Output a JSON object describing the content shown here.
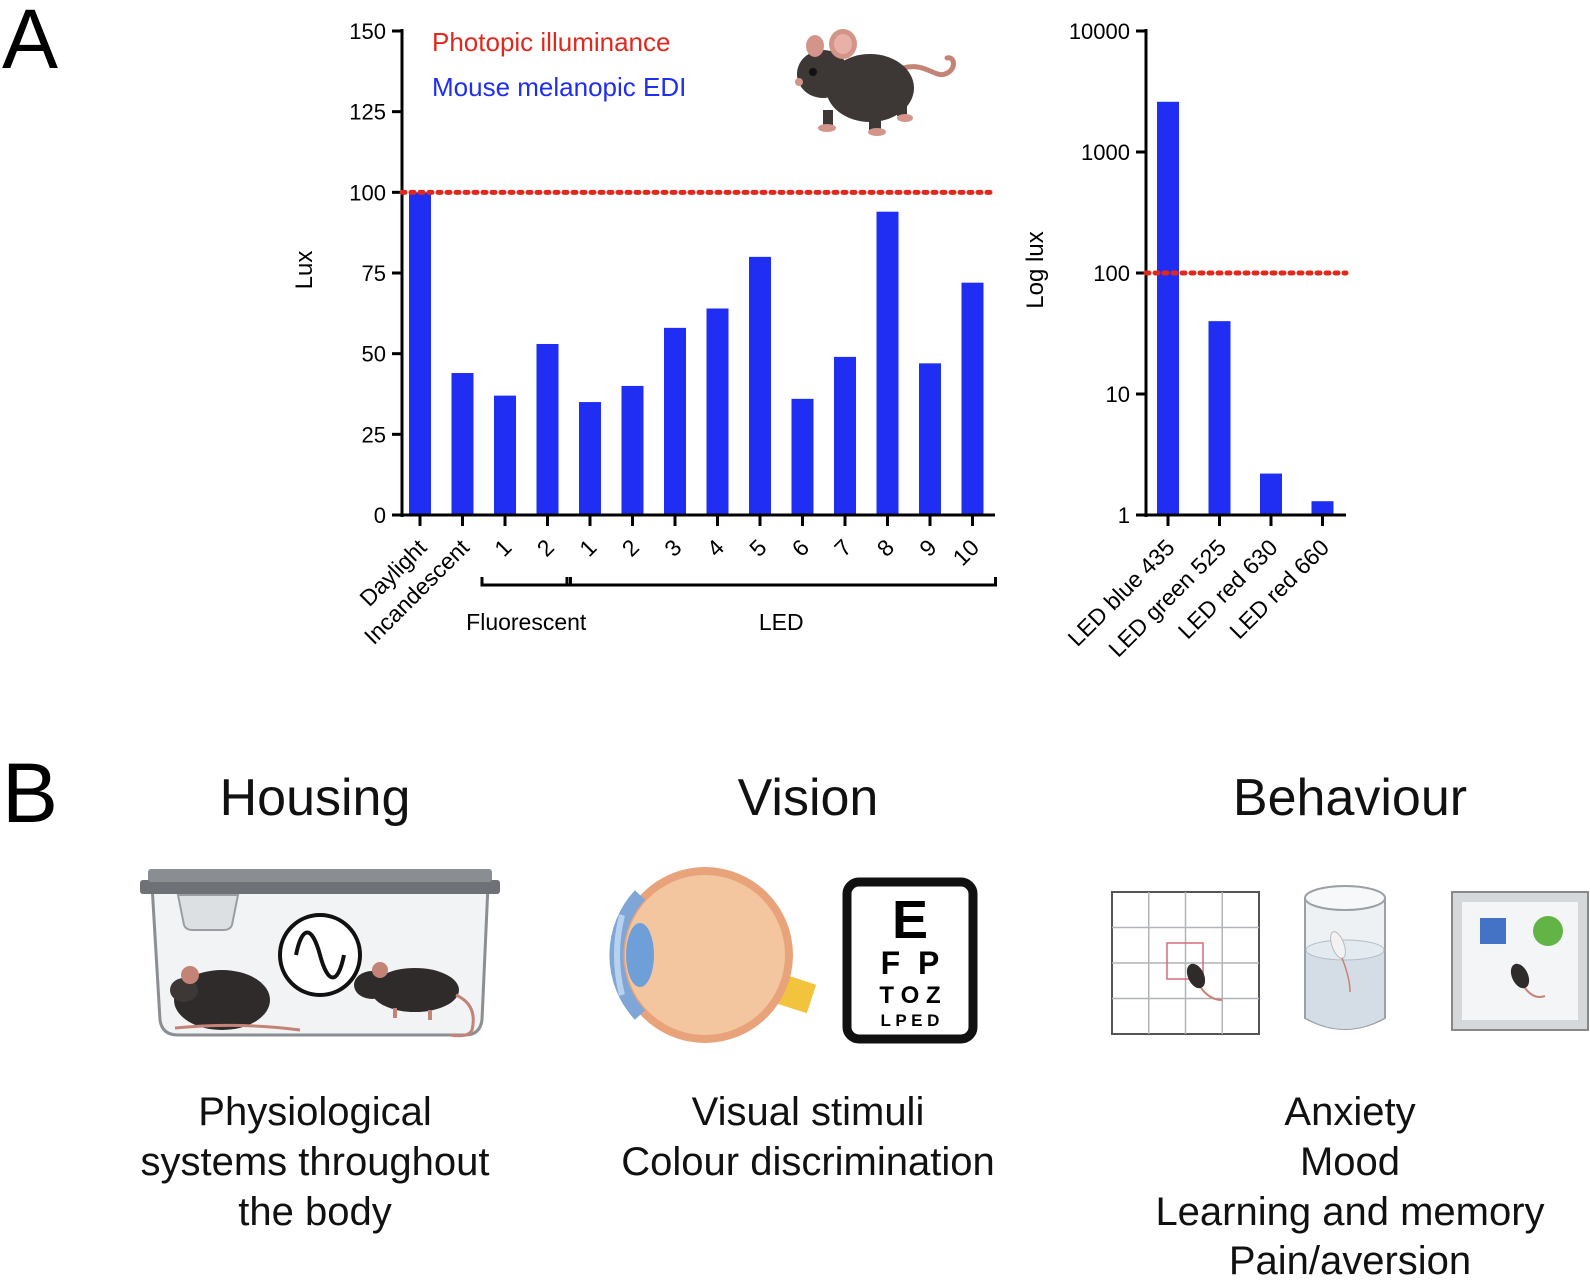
{
  "panels": {
    "a": "A",
    "b": "B"
  },
  "colors": {
    "bar": "#1f2ef2",
    "reference": "#e0281c",
    "legend_red": "#e0281c",
    "legend_blue": "#1f2ef2"
  },
  "icons": [
    "mouse-icon",
    "cage-icon",
    "oscillation-icon",
    "eye-icon",
    "eye-chart-icon",
    "open-field-icon",
    "swim-cylinder-icon",
    "novel-object-arena-icon"
  ],
  "eye_chart": {
    "rows": [
      "E",
      "F  P",
      "T O Z",
      "L P E D"
    ]
  },
  "chart_data": [
    {
      "type": "bar",
      "ylabel": "Lux",
      "ylim": [
        0,
        150
      ],
      "yticks": [
        0,
        25,
        50,
        75,
        100,
        125,
        150
      ],
      "categories": [
        "Daylight",
        "Incandescent",
        "1",
        "2",
        "1",
        "2",
        "3",
        "4",
        "5",
        "6",
        "7",
        "8",
        "9",
        "10"
      ],
      "series": [
        {
          "name": "Mouse melanopic EDI",
          "values": [
            100,
            44,
            37,
            53,
            35,
            40,
            58,
            64,
            80,
            36,
            49,
            94,
            47,
            72
          ]
        }
      ],
      "reference_line": {
        "name": "Photopic illuminance",
        "value": 100
      },
      "groups": [
        {
          "label": "Fluorescent",
          "from": 2,
          "to": 3
        },
        {
          "label": "LED",
          "from": 4,
          "to": 13
        }
      ],
      "legend": [
        "Photopic illuminance",
        "Mouse melanopic EDI"
      ]
    },
    {
      "type": "bar",
      "ylabel": "Log lux",
      "yscale": "log",
      "ylim": [
        1,
        10000
      ],
      "yticks": [
        1,
        10,
        100,
        1000,
        10000
      ],
      "categories": [
        "LED blue 435",
        "LED green 525",
        "LED red 630",
        "LED red 660"
      ],
      "series": [
        {
          "values": [
            2600,
            40,
            2.2,
            1.3
          ]
        }
      ],
      "reference_line": {
        "value": 100
      }
    }
  ],
  "sections": [
    {
      "title": "Housing",
      "lines": [
        "Physiological",
        "systems throughout",
        "the body"
      ]
    },
    {
      "title": "Vision",
      "lines": [
        "Visual stimuli",
        "Colour discrimination"
      ]
    },
    {
      "title": "Behaviour",
      "lines": [
        "Anxiety",
        "Mood",
        "Learning and memory",
        "Pain/aversion"
      ]
    }
  ]
}
